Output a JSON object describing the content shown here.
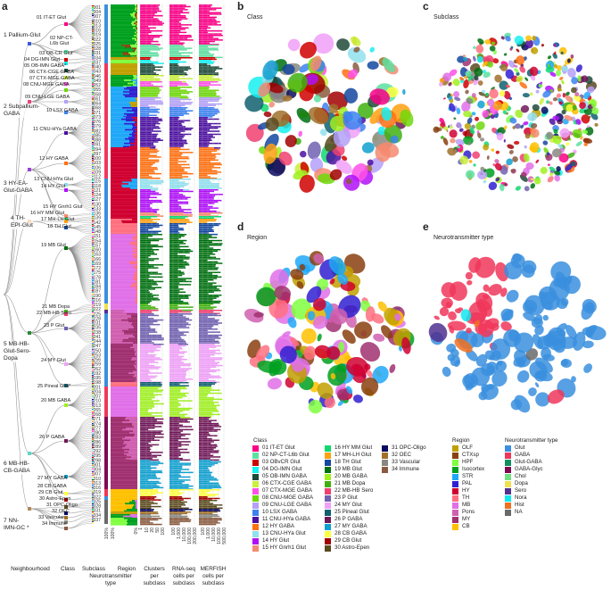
{
  "panel_letters": {
    "a": "a",
    "b": "b",
    "c": "c",
    "d": "d",
    "e": "e"
  },
  "umap_titles": {
    "b": "Class",
    "c": "Subclass",
    "d": "Region",
    "e": "Neurotransmitter type"
  },
  "neighbourhoods": [
    {
      "label": "1 Pallium-Glut",
      "color": "#3a5bd9"
    },
    {
      "label": "2 Subpallium-GABA",
      "color": "#e8457a"
    },
    {
      "label": "3 HY-EA-Glut-GABA",
      "color": "#9b3fd6"
    },
    {
      "label": "4 TH-EPI-Glut",
      "color": "#f08a2c"
    },
    {
      "label": "5 MB-HB-Glut-Sero-Dopa",
      "color": "#2a8a3a"
    },
    {
      "label": "6 MB-HB-CB-GABA",
      "color": "#5fd6c8"
    },
    {
      "label": "7 NN-IMN-GC *",
      "color": "#b08a5a"
    }
  ],
  "classes": [
    {
      "label": "01 IT-ET Glut",
      "color": "#fa0087"
    },
    {
      "label": "02 NP-CT-L6b Glut",
      "color": "#5ce0a0"
    },
    {
      "label": "03 OBvCR Glut",
      "color": "#d00000"
    },
    {
      "label": "04 DG-IMN Glut",
      "color": "#16f0f0"
    },
    {
      "label": "05 OB-IMN GABA",
      "color": "#1e4a3a"
    },
    {
      "label": "06 CTX-CGE GABA",
      "color": "#c8f03c"
    },
    {
      "label": "07 CTX-MGE GABA",
      "color": "#ff50e6"
    },
    {
      "label": "08 CNU-MGE GABA",
      "color": "#6ed80a"
    },
    {
      "label": "09 CNU-LGE GABA",
      "color": "#b4a0f8"
    },
    {
      "label": "10 LSX GABA",
      "color": "#3c82f0"
    },
    {
      "label": "11 CNU-HYa GABA",
      "color": "#4b0fa0"
    },
    {
      "label": "12 HY GABA",
      "color": "#ff7010"
    },
    {
      "label": "13 CNU-HYa Glut",
      "color": "#90e0ee"
    },
    {
      "label": "14 HY Glut",
      "color": "#b010f8"
    },
    {
      "label": "15 HY Gnrh1 Glut",
      "color": "#f58a70"
    },
    {
      "label": "16 HY MM Glut",
      "color": "#10d870"
    },
    {
      "label": "17 MH-LH Glut",
      "color": "#ffa010"
    },
    {
      "label": "18 TH Glut",
      "color": "#1448a0"
    },
    {
      "label": "19 MB Glut",
      "color": "#007010"
    },
    {
      "label": "20 MB GABA",
      "color": "#a0f020"
    },
    {
      "label": "21 MB Dopa",
      "color": "#40b010"
    },
    {
      "label": "22 MB-HB Sero",
      "color": "#f04070"
    },
    {
      "label": "23 P Glut",
      "color": "#7060b0"
    },
    {
      "label": "24 MY Glut",
      "color": "#f0a0f8"
    },
    {
      "label": "25 Pineal Glut",
      "color": "#106070"
    },
    {
      "label": "26 P GABA",
      "color": "#701858"
    },
    {
      "label": "27 MY GABA",
      "color": "#10a0d0"
    },
    {
      "label": "28 CB GABA",
      "color": "#ffff40"
    },
    {
      "label": "29 CB Glut",
      "color": "#a00000"
    },
    {
      "label": "30 Astro-Epen",
      "color": "#5a4a1e"
    },
    {
      "label": "31 OPC-Oligo",
      "color": "#0a0a60"
    },
    {
      "label": "32 OEC",
      "color": "#a0702a"
    },
    {
      "label": "33 Vascular",
      "color": "#888880"
    },
    {
      "label": "34 Immune",
      "color": "#8a5a40"
    }
  ],
  "tree_class_labels": [
    "01 IT-ET Glut",
    "02 NP-CT-\nL6b Glut",
    "03 OB-CR Glut",
    "04 DG-IMN Glut",
    "05 OB-IMN GABA*",
    "06 CTX-CGE GABA",
    "07 CTX-MGE GABA",
    "08 CNU-MGE GABA",
    "09 CNU-LGE GABA",
    "10 LSX GABA",
    "11 CNU-HYa GABA",
    "12 HY GABA",
    "13 CNU-HYa Glut",
    "14 HY Glut",
    "15 HY Gnrh1 Glut",
    "16 HY MM Glut",
    "17 MH-LH Glut",
    "18 TH Glut",
    "19 MB Glut",
    "20 MB GABA",
    "21 MB Dopa",
    "22 MB-HB Sero",
    "23 P Glut",
    "24 MY Glut",
    "25 Pineal Glut*",
    "26 P GABA",
    "27 MY GABA",
    "28 CB GABA",
    "29 CB Glut",
    "30 Astro-Epen",
    "31 OPC-Oligo",
    "32 OEC",
    "33 Vascular",
    "34 Immune"
  ],
  "subclass_ticks": [
    "001",
    "004",
    "007",
    "010",
    "013",
    "016",
    "019",
    "022",
    "025",
    "028",
    "031",
    "034",
    "037",
    "040",
    "043",
    "046",
    "049",
    "052",
    "055",
    "058",
    "061",
    "064",
    "068",
    "071",
    "073",
    "076",
    "079",
    "082",
    "085",
    "088",
    "091",
    "094",
    "097",
    "100",
    "103",
    "106",
    "109",
    "112",
    "115",
    "118",
    "121",
    "124",
    "127",
    "130",
    "133",
    "136",
    "139",
    "142",
    "145",
    "148",
    "151",
    "154",
    "157",
    "160",
    "163",
    "166",
    "169",
    "172",
    "175",
    "178",
    "181",
    "184",
    "187",
    "190",
    "216",
    "219",
    "222",
    "225",
    "228",
    "231",
    "235",
    "238",
    "241",
    "244",
    "247",
    "250",
    "253",
    "256",
    "259",
    "262",
    "192",
    "195",
    "198",
    "201",
    "204",
    "207",
    "210",
    "213",
    "265",
    "268",
    "271",
    "274",
    "277",
    "280",
    "283",
    "286",
    "289",
    "292",
    "295",
    "298",
    "301",
    "304",
    "307",
    "310",
    "313",
    "316",
    "319",
    "322",
    "325",
    "328",
    "331",
    "334",
    "337"
  ],
  "regions": [
    {
      "label": "OLF",
      "color": "#c0a000"
    },
    {
      "label": "CTXsp",
      "color": "#8a4010"
    },
    {
      "label": "HPF",
      "color": "#80ff40"
    },
    {
      "label": "Isocortex",
      "color": "#00a020"
    },
    {
      "label": "STR",
      "color": "#20a8f8"
    },
    {
      "label": "PAL",
      "color": "#3020d0"
    },
    {
      "label": "HY",
      "color": "#d00030"
    },
    {
      "label": "TH",
      "color": "#ff7080"
    },
    {
      "label": "MB",
      "color": "#e070e8"
    },
    {
      "label": "Pons",
      "color": "#d060b0"
    },
    {
      "label": "MY",
      "color": "#a03070"
    },
    {
      "label": "CB",
      "color": "#ffc000"
    }
  ],
  "neurotransmitters": [
    {
      "label": "Glut",
      "color": "#3a8fde"
    },
    {
      "label": "GABA",
      "color": "#f0375a"
    },
    {
      "label": "Glut-GABA",
      "color": "#109060"
    },
    {
      "label": "GABA-Glyc",
      "color": "#800850"
    },
    {
      "label": "Chol",
      "color": "#70e080"
    },
    {
      "label": "Dopa",
      "color": "#f0e050"
    },
    {
      "label": "Sero",
      "color": "#503090"
    },
    {
      "label": "Nora",
      "color": "#10e8f0"
    },
    {
      "label": "Hist",
      "color": "#f07020"
    },
    {
      "label": "NA",
      "color": "#6a6a6a"
    }
  ],
  "legend_titles": {
    "class": "Class",
    "region": "Region",
    "nt": "Neurotransmitter type"
  },
  "axes": {
    "nt_ticks": [
      "100%"
    ],
    "region_ticks": [
      "100%",
      "0%"
    ],
    "clusters_ticks": [
      "1",
      "10",
      "20",
      "50",
      "100"
    ],
    "rnaseq_ticks": [
      "100",
      "1,000",
      "10,000",
      "100,000",
      "200,000"
    ],
    "merfish_ticks": [
      "100",
      "1,000",
      "10,000",
      "100,000",
      "500,000"
    ]
  },
  "column_labels": {
    "neighbourhood": "Neighbourhood",
    "class": "Class",
    "subclass": "Subclass",
    "nt": "Neurotransmitter\ntype",
    "region": "Region",
    "clusters": "Clusters\nper\nsubclass",
    "rnaseq": "RNA-seq\ncells per\nsubclass",
    "merfish": "MERFISH\ncells per\nsubclass"
  }
}
